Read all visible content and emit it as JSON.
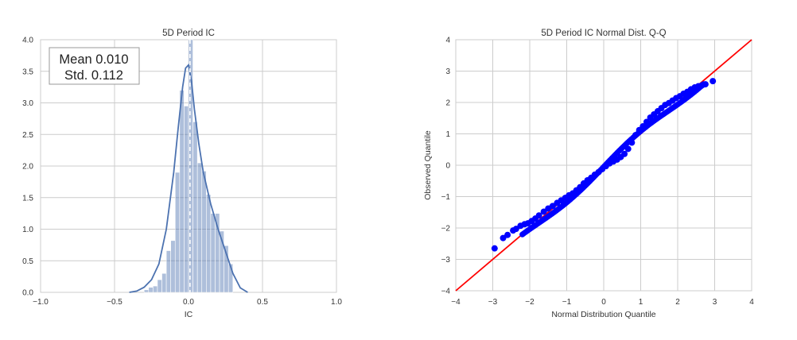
{
  "chart_data": [
    {
      "type": "histogram",
      "title": "5D Period IC",
      "xlabel": "IC",
      "ylabel": "",
      "xlim": [
        -1.0,
        1.0
      ],
      "ylim": [
        0.0,
        4.0
      ],
      "xticks": [
        "−1.0",
        "−0.5",
        "0.0",
        "0.5",
        "1.0"
      ],
      "yticks": [
        "0.0",
        "0.5",
        "1.0",
        "1.5",
        "2.0",
        "2.5",
        "3.0",
        "3.5",
        "4.0"
      ],
      "grid": true,
      "annotation": [
        "Mean 0.010",
        "Std. 0.112"
      ],
      "mean_line": 0.01,
      "bins": [
        {
          "x0": -0.3,
          "x1": -0.27,
          "density": 0.04
        },
        {
          "x0": -0.27,
          "x1": -0.24,
          "density": 0.08
        },
        {
          "x0": -0.24,
          "x1": -0.21,
          "density": 0.1
        },
        {
          "x0": -0.21,
          "x1": -0.18,
          "density": 0.2
        },
        {
          "x0": -0.18,
          "x1": -0.15,
          "density": 0.3
        },
        {
          "x0": -0.15,
          "x1": -0.12,
          "density": 0.66
        },
        {
          "x0": -0.12,
          "x1": -0.09,
          "density": 0.82
        },
        {
          "x0": -0.09,
          "x1": -0.06,
          "density": 1.9
        },
        {
          "x0": -0.06,
          "x1": -0.03,
          "density": 3.2
        },
        {
          "x0": -0.03,
          "x1": 0.0,
          "density": 2.95
        },
        {
          "x0": 0.0,
          "x1": 0.03,
          "density": 4.25
        },
        {
          "x0": 0.03,
          "x1": 0.06,
          "density": 2.7
        },
        {
          "x0": 0.06,
          "x1": 0.09,
          "density": 2.05
        },
        {
          "x0": 0.09,
          "x1": 0.12,
          "density": 1.92
        },
        {
          "x0": 0.12,
          "x1": 0.15,
          "density": 1.55
        },
        {
          "x0": 0.15,
          "x1": 0.18,
          "density": 1.25
        },
        {
          "x0": 0.18,
          "x1": 0.21,
          "density": 1.25
        },
        {
          "x0": 0.21,
          "x1": 0.24,
          "density": 0.97
        },
        {
          "x0": 0.24,
          "x1": 0.27,
          "density": 0.74
        },
        {
          "x0": 0.27,
          "x1": 0.3,
          "density": 0.45
        }
      ],
      "kde": {
        "x": [
          -0.4,
          -0.35,
          -0.3,
          -0.25,
          -0.2,
          -0.15,
          -0.1,
          -0.07,
          -0.04,
          -0.02,
          0.0,
          0.02,
          0.04,
          0.07,
          0.1,
          0.15,
          0.2,
          0.25,
          0.3,
          0.35,
          0.4
        ],
        "y": [
          0.0,
          0.02,
          0.08,
          0.2,
          0.45,
          1.0,
          1.9,
          2.6,
          3.25,
          3.55,
          3.6,
          3.35,
          2.9,
          2.35,
          1.9,
          1.4,
          1.0,
          0.65,
          0.3,
          0.07,
          0.0
        ]
      },
      "colors": {
        "bars": "#4c72b0",
        "kde": "#4c72b0",
        "mean_line": "#ffffff"
      }
    },
    {
      "type": "scatter",
      "title": "5D Period IC Normal Dist. Q-Q",
      "xlabel": "Normal Distribution Quantile",
      "ylabel": "Observed Quantile",
      "xlim": [
        -4,
        4
      ],
      "ylim": [
        -4,
        4
      ],
      "xticks": [
        "−4",
        "−3",
        "−2",
        "−1",
        "0",
        "1",
        "2",
        "3",
        "4"
      ],
      "yticks": [
        "−4",
        "−3",
        "−2",
        "−1",
        "0",
        "1",
        "2",
        "3",
        "4"
      ],
      "grid": true,
      "reference_line": {
        "x": [
          -4,
          4
        ],
        "y": [
          -4,
          4
        ],
        "color": "#ff0000"
      },
      "points_color": "#0000ff",
      "points": [
        [
          -2.95,
          -2.65
        ],
        [
          -2.72,
          -2.32
        ],
        [
          -2.6,
          -2.22
        ],
        [
          -2.45,
          -2.08
        ],
        [
          -2.37,
          -2.03
        ],
        [
          -2.25,
          -1.93
        ],
        [
          -2.14,
          -1.88
        ],
        [
          -2.05,
          -1.85
        ],
        [
          -1.95,
          -1.78
        ],
        [
          -1.85,
          -1.7
        ],
        [
          -1.75,
          -1.6
        ],
        [
          -1.62,
          -1.48
        ],
        [
          -1.5,
          -1.38
        ],
        [
          -1.38,
          -1.3
        ],
        [
          -1.26,
          -1.2
        ],
        [
          -1.15,
          -1.12
        ],
        [
          -1.04,
          -1.04
        ],
        [
          -0.94,
          -0.96
        ],
        [
          -0.84,
          -0.9
        ],
        [
          -0.74,
          -0.8
        ],
        [
          -0.64,
          -0.7
        ],
        [
          -0.54,
          -0.58
        ],
        [
          -0.44,
          -0.48
        ],
        [
          -0.34,
          -0.4
        ],
        [
          -0.24,
          -0.3
        ],
        [
          -0.14,
          -0.22
        ],
        [
          -0.04,
          -0.12
        ],
        [
          0.06,
          -0.03
        ],
        [
          0.16,
          0.06
        ],
        [
          0.26,
          0.12
        ],
        [
          0.36,
          0.18
        ],
        [
          0.46,
          0.26
        ],
        [
          0.56,
          0.36
        ],
        [
          0.66,
          0.52
        ],
        [
          0.76,
          0.72
        ],
        [
          0.86,
          0.96
        ],
        [
          0.96,
          1.12
        ],
        [
          1.06,
          1.24
        ],
        [
          1.16,
          1.38
        ],
        [
          1.26,
          1.52
        ],
        [
          1.36,
          1.62
        ],
        [
          1.46,
          1.72
        ],
        [
          1.56,
          1.82
        ],
        [
          1.66,
          1.92
        ],
        [
          1.76,
          1.98
        ],
        [
          1.86,
          2.06
        ],
        [
          1.96,
          2.14
        ],
        [
          2.06,
          2.2
        ],
        [
          2.16,
          2.28
        ],
        [
          2.26,
          2.34
        ],
        [
          2.36,
          2.42
        ],
        [
          2.46,
          2.48
        ],
        [
          2.56,
          2.52
        ],
        [
          2.66,
          2.55
        ],
        [
          2.75,
          2.58
        ],
        [
          2.95,
          2.68
        ]
      ]
    }
  ]
}
